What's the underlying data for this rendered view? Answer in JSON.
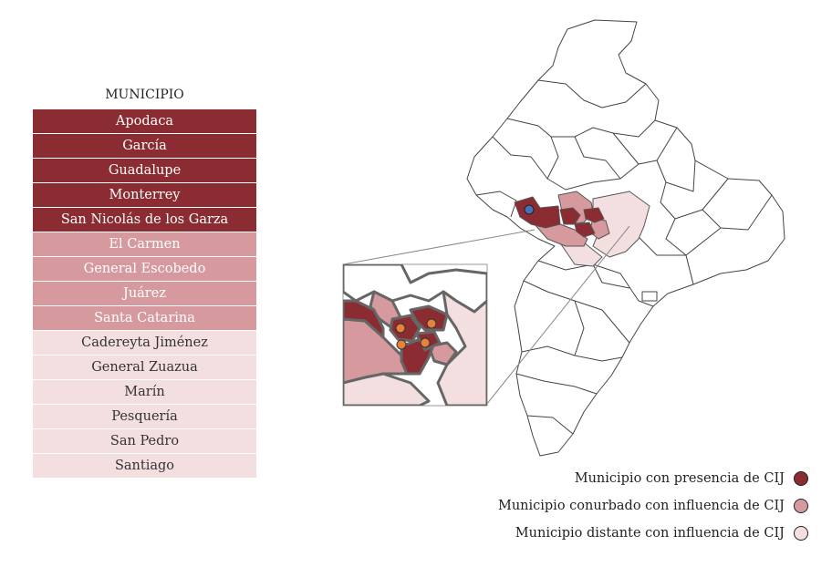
{
  "table": {
    "header": "MUNICIPIO",
    "rows": [
      {
        "name": "Apodaca",
        "category": "presence"
      },
      {
        "name": "García",
        "category": "presence"
      },
      {
        "name": "Guadalupe",
        "category": "presence"
      },
      {
        "name": "Monterrey",
        "category": "presence"
      },
      {
        "name": "San Nicolás de los Garza",
        "category": "presence"
      },
      {
        "name": "El Carmen",
        "category": "conurbado"
      },
      {
        "name": "General Escobedo",
        "category": "conurbado"
      },
      {
        "name": "Juárez",
        "category": "conurbado"
      },
      {
        "name": "Santa Catarina",
        "category": "conurbado"
      },
      {
        "name": "Cadereyta Jiménez",
        "category": "distante"
      },
      {
        "name": "General Zuazua",
        "category": "distante"
      },
      {
        "name": "Marín",
        "category": "distante"
      },
      {
        "name": "Pesquería",
        "category": "distante"
      },
      {
        "name": "San Pedro",
        "category": "distante"
      },
      {
        "name": "Santiago",
        "category": "distante"
      }
    ]
  },
  "legend": [
    {
      "label": "Municipio con presencia de CIJ",
      "color": "#8b2c32"
    },
    {
      "label": "Municipio conurbado con influencia de CIJ",
      "color": "#d69a9e"
    },
    {
      "label": "Municipio distante con influencia de CIJ",
      "color": "#f4dfe0"
    }
  ],
  "colors": {
    "presence": "#8b2c32",
    "conurbado": "#d69a9e",
    "distante": "#f4dfe0",
    "marker_blue": "#4a6fb5",
    "marker_orange": "#e8823a"
  }
}
